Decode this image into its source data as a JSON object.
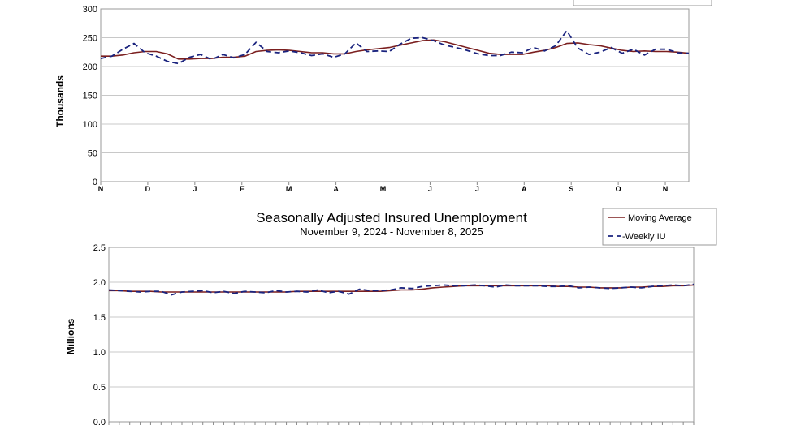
{
  "chart_data": [
    {
      "type": "line",
      "title": "",
      "subtitle": "",
      "xlabel": "",
      "ylabel": "Thousands",
      "ylim": [
        0,
        300
      ],
      "yticks": [
        0,
        50,
        100,
        150,
        200,
        250,
        300
      ],
      "month_labels": [
        "N",
        "D",
        "J",
        "F",
        "M",
        "A",
        "M",
        "J",
        "J",
        "A",
        "S",
        "O",
        "N"
      ],
      "grid": true,
      "legend": "top-right",
      "series": [
        {
          "name": "",
          "style": "solid",
          "color": "#7b1f1f",
          "values": [
            218,
            218,
            220,
            224,
            226,
            226,
            222,
            213,
            213,
            214,
            214,
            216,
            216,
            218,
            226,
            228,
            229,
            228,
            226,
            224,
            224,
            222,
            222,
            226,
            229,
            231,
            233,
            237,
            241,
            245,
            246,
            243,
            238,
            233,
            228,
            223,
            221,
            221,
            221,
            225,
            228,
            233,
            240,
            241,
            238,
            236,
            232,
            228,
            226,
            227,
            226,
            226,
            225,
            223
          ]
        },
        {
          "name": "",
          "style": "dashed",
          "color": "#1a237e",
          "values": [
            214,
            218,
            230,
            240,
            224,
            218,
            209,
            205,
            216,
            221,
            212,
            221,
            215,
            221,
            242,
            226,
            224,
            227,
            224,
            219,
            222,
            216,
            222,
            241,
            226,
            227,
            226,
            239,
            249,
            250,
            245,
            237,
            233,
            228,
            222,
            219,
            219,
            225,
            224,
            233,
            227,
            236,
            262,
            232,
            221,
            225,
            233,
            223,
            230,
            220,
            230,
            230,
            224,
            223
          ]
        }
      ]
    },
    {
      "type": "line",
      "title": "Seasonally Adjusted Insured Unemployment",
      "subtitle": "November 9, 2024 - November 8, 2025",
      "xlabel": "",
      "ylabel": "Millions",
      "ylim": [
        0,
        2.5
      ],
      "yticks": [
        "0.0",
        "0.5",
        "1.0",
        "1.5",
        "2.0",
        "2.5"
      ],
      "grid": true,
      "legend": "top-right",
      "series": [
        {
          "name": "Moving Average",
          "style": "solid",
          "color": "#7b1f1f",
          "values": [
            1.88,
            1.88,
            1.87,
            1.87,
            1.87,
            1.86,
            1.86,
            1.86,
            1.86,
            1.86,
            1.86,
            1.86,
            1.86,
            1.86,
            1.86,
            1.86,
            1.86,
            1.86,
            1.87,
            1.87,
            1.87,
            1.87,
            1.87,
            1.87,
            1.87,
            1.87,
            1.87,
            1.88,
            1.89,
            1.89,
            1.9,
            1.92,
            1.93,
            1.94,
            1.95,
            1.95,
            1.95,
            1.95,
            1.95,
            1.95,
            1.95,
            1.95,
            1.95,
            1.94,
            1.94,
            1.93,
            1.93,
            1.92,
            1.92,
            1.92,
            1.93,
            1.93,
            1.94,
            1.94,
            1.95,
            1.95,
            1.96
          ]
        },
        {
          "name": "-Weekly IU",
          "style": "dashed",
          "color": "#1a237e",
          "values": [
            1.89,
            1.88,
            1.87,
            1.86,
            1.87,
            1.87,
            1.82,
            1.86,
            1.87,
            1.88,
            1.85,
            1.87,
            1.84,
            1.87,
            1.86,
            1.85,
            1.88,
            1.86,
            1.87,
            1.86,
            1.89,
            1.85,
            1.87,
            1.83,
            1.9,
            1.88,
            1.88,
            1.89,
            1.92,
            1.91,
            1.94,
            1.95,
            1.96,
            1.95,
            1.95,
            1.96,
            1.95,
            1.93,
            1.96,
            1.95,
            1.95,
            1.95,
            1.94,
            1.94,
            1.95,
            1.92,
            1.93,
            1.92,
            1.91,
            1.92,
            1.93,
            1.92,
            1.94,
            1.95,
            1.96,
            1.95,
            1.97
          ]
        }
      ]
    }
  ]
}
